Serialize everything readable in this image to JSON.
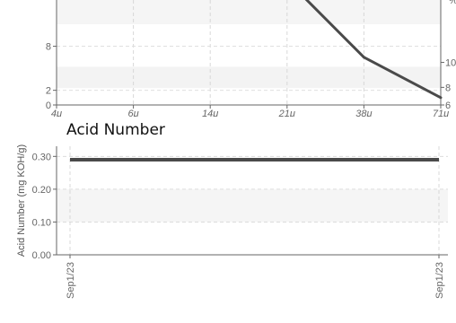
{
  "chart_data": [
    {
      "type": "line",
      "title": "",
      "x": [
        "4μ",
        "6μ",
        "14μ",
        "21μ",
        "38μ",
        "71μ"
      ],
      "y_left_ticks": [
        "0",
        "2",
        "8"
      ],
      "y_right_ticks": [
        "6",
        "8",
        "10"
      ],
      "right_axis_partial_label": "%",
      "series": [
        {
          "values": [
            null,
            null,
            null,
            null,
            6.5,
            1.0
          ]
        }
      ],
      "line_points": [
        {
          "x": "21μ",
          "y": 17.0
        },
        {
          "x": "38μ",
          "y": 6.5
        },
        {
          "x": "71μ",
          "y": 1.0
        }
      ],
      "ylim": [
        0,
        14.3
      ],
      "grid": true,
      "line_color": "#4a4a4a"
    },
    {
      "type": "line",
      "title": "Acid Number",
      "x": [
        "Sep1/23",
        "Sep1/23"
      ],
      "ylabel": "Acid Number (mg KOH/g)",
      "y_ticks": [
        "0.00",
        "0.10",
        "0.20",
        "0.30"
      ],
      "ylim": [
        0,
        0.32
      ],
      "series": [
        {
          "values": [
            0.29,
            0.29
          ]
        }
      ],
      "grid": true,
      "line_color": "#4a4a4a"
    }
  ]
}
